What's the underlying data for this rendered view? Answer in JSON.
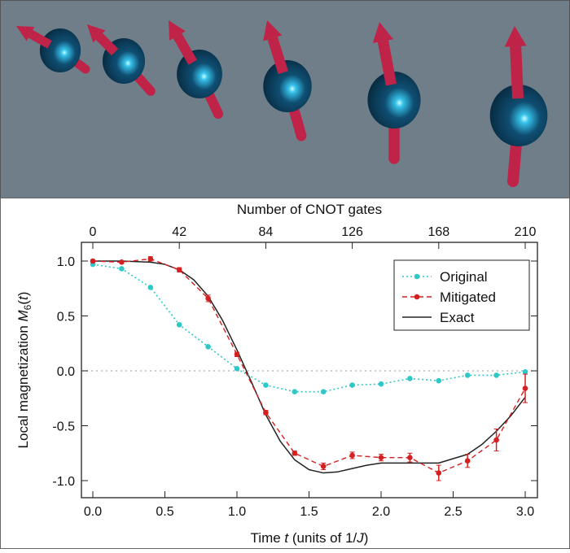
{
  "colors": {
    "panel_bg": "#6f7e88",
    "sphere": "#0e3b57",
    "sphere_highlight": "#aaf6ff",
    "arrow": "#c02348",
    "original": "#2ec8c8",
    "mitigated": "#d42020",
    "exact": "#222222"
  },
  "illustration": {
    "spins": [
      {
        "name": "spin-1"
      },
      {
        "name": "spin-2"
      },
      {
        "name": "spin-3"
      },
      {
        "name": "spin-4"
      },
      {
        "name": "spin-5"
      },
      {
        "name": "spin-6"
      }
    ]
  },
  "chart_data": {
    "type": "line",
    "xlabel": "Time t (units of 1/J)",
    "ylabel": "Local magnetization M6(t)",
    "top_xlabel": "Number of CNOT gates",
    "xlim": [
      -0.1,
      3.1
    ],
    "ylim": [
      -1.1,
      1.08
    ],
    "x_ticks": [
      "0.0",
      "0.5",
      "1.0",
      "1.5",
      "2.0",
      "2.5",
      "3.0"
    ],
    "x_tick_values": [
      0,
      0.5,
      1,
      1.5,
      2,
      2.5,
      3
    ],
    "y_ticks": [
      "1.0",
      "0.5",
      "0.0",
      "-0.5",
      "-1.0"
    ],
    "y_tick_values": [
      1,
      0.5,
      0,
      -0.5,
      -1
    ],
    "top_ticks": [
      "0",
      "42",
      "84",
      "126",
      "168",
      "210"
    ],
    "top_tick_values": [
      0,
      42,
      84,
      126,
      168,
      210
    ],
    "reference_line_y": 0,
    "legend_position": "top-right",
    "series": [
      {
        "name": "Original",
        "style": "dotted-markers",
        "x": [
          0,
          0.2,
          0.4,
          0.6,
          0.8,
          1.0,
          1.2,
          1.4,
          1.6,
          1.8,
          2.0,
          2.2,
          2.4,
          2.6,
          2.8,
          3.0
        ],
        "y": [
          0.97,
          0.93,
          0.76,
          0.42,
          0.22,
          0.02,
          -0.13,
          -0.19,
          -0.19,
          -0.13,
          -0.12,
          -0.07,
          -0.09,
          -0.04,
          -0.04,
          -0.01
        ]
      },
      {
        "name": "Mitigated",
        "style": "dashed-markers-errorbars",
        "x": [
          0,
          0.2,
          0.4,
          0.6,
          0.8,
          1.0,
          1.2,
          1.4,
          1.6,
          1.8,
          2.0,
          2.2,
          2.4,
          2.6,
          2.8,
          3.0
        ],
        "y": [
          1.0,
          0.99,
          1.02,
          0.92,
          0.66,
          0.15,
          -0.38,
          -0.75,
          -0.87,
          -0.77,
          -0.79,
          -0.79,
          -0.93,
          -0.82,
          -0.63,
          -0.16
        ],
        "err": [
          0.01,
          0.01,
          0.02,
          0.02,
          0.03,
          0.02,
          0.02,
          0.02,
          0.03,
          0.03,
          0.03,
          0.04,
          0.07,
          0.06,
          0.1,
          0.13
        ]
      },
      {
        "name": "Exact",
        "style": "solid",
        "x": [
          0,
          0.2,
          0.4,
          0.5,
          0.6,
          0.7,
          0.8,
          0.9,
          1.0,
          1.1,
          1.2,
          1.3,
          1.4,
          1.5,
          1.6,
          1.7,
          1.8,
          1.9,
          2.0,
          2.2,
          2.4,
          2.6,
          2.7,
          2.8,
          2.9,
          3.0
        ],
        "y": [
          1.0,
          1.0,
          0.99,
          0.97,
          0.92,
          0.83,
          0.68,
          0.46,
          0.19,
          -0.1,
          -0.4,
          -0.64,
          -0.81,
          -0.9,
          -0.93,
          -0.92,
          -0.89,
          -0.86,
          -0.84,
          -0.84,
          -0.84,
          -0.76,
          -0.67,
          -0.55,
          -0.41,
          -0.24
        ]
      }
    ]
  }
}
